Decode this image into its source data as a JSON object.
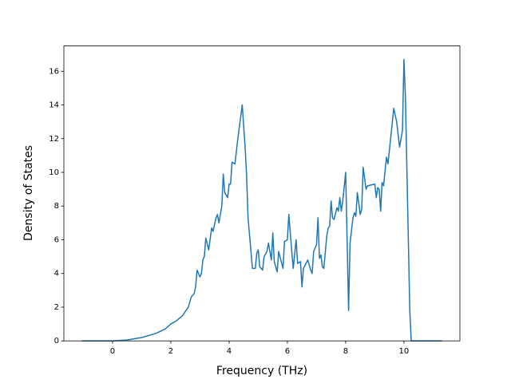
{
  "chart_data": {
    "type": "line",
    "xlabel": "Frequency (THz)",
    "ylabel": "Density of States",
    "xlim": [
      -1.67,
      11.92
    ],
    "ylim": [
      0,
      17.5
    ],
    "xticks": [
      0,
      2,
      4,
      6,
      8,
      10
    ],
    "yticks": [
      0,
      2,
      4,
      6,
      8,
      10,
      12,
      14,
      16
    ],
    "grid": false,
    "series": [
      {
        "color": "#1f77b4",
        "x": [
          -1.05,
          0,
          0.5,
          1.0,
          1.5,
          1.8,
          2.0,
          2.2,
          2.4,
          2.6,
          2.7,
          2.8,
          2.85,
          2.9,
          3.0,
          3.05,
          3.1,
          3.15,
          3.2,
          3.3,
          3.4,
          3.45,
          3.55,
          3.6,
          3.65,
          3.75,
          3.8,
          3.85,
          3.95,
          4.0,
          4.05,
          4.1,
          4.2,
          4.3,
          4.45,
          4.55,
          4.6,
          4.65,
          4.75,
          4.8,
          4.9,
          4.95,
          5.0,
          5.05,
          5.15,
          5.2,
          5.3,
          5.35,
          5.45,
          5.5,
          5.55,
          5.65,
          5.7,
          5.85,
          5.9,
          6.0,
          6.05,
          6.15,
          6.2,
          6.3,
          6.35,
          6.45,
          6.5,
          6.55,
          6.7,
          6.8,
          6.85,
          6.9,
          7.0,
          7.05,
          7.1,
          7.15,
          7.2,
          7.25,
          7.35,
          7.4,
          7.45,
          7.5,
          7.55,
          7.6,
          7.7,
          7.75,
          7.8,
          7.85,
          7.9,
          8.0,
          8.05,
          8.1,
          8.15,
          8.25,
          8.3,
          8.35,
          8.4,
          8.5,
          8.55,
          8.6,
          8.7,
          8.75,
          9.0,
          9.05,
          9.1,
          9.15,
          9.2,
          9.25,
          9.3,
          9.4,
          9.45,
          9.5,
          9.65,
          9.75,
          9.85,
          9.95,
          10.0,
          10.05,
          10.1,
          10.2,
          10.25,
          11.3
        ],
        "values": [
          0,
          0,
          0.05,
          0.2,
          0.45,
          0.7,
          1.0,
          1.2,
          1.5,
          2.0,
          2.6,
          2.8,
          3.2,
          4.2,
          3.8,
          4.0,
          4.8,
          5.0,
          6.1,
          5.4,
          6.7,
          6.5,
          7.3,
          7.5,
          7.0,
          8.0,
          9.9,
          8.8,
          8.5,
          9.3,
          9.3,
          10.6,
          10.5,
          12.0,
          14.0,
          11.5,
          9.8,
          7.3,
          5.3,
          4.3,
          4.3,
          5.2,
          5.4,
          4.4,
          4.2,
          5.0,
          5.3,
          5.8,
          4.8,
          6.4,
          4.7,
          4.1,
          5.3,
          4.3,
          5.9,
          6.0,
          7.5,
          5.3,
          4.3,
          6.0,
          4.6,
          4.7,
          3.2,
          4.3,
          4.8,
          4.2,
          4.0,
          5.3,
          5.7,
          7.3,
          4.9,
          5.1,
          4.4,
          4.3,
          6.2,
          6.7,
          6.8,
          8.3,
          7.3,
          7.2,
          7.9,
          7.7,
          8.5,
          7.7,
          8.3,
          10.0,
          6.0,
          1.8,
          5.8,
          7.3,
          7.6,
          7.4,
          8.8,
          7.5,
          7.8,
          10.3,
          9.0,
          9.2,
          9.3,
          8.5,
          9.1,
          9.0,
          7.7,
          9.4,
          9.2,
          10.9,
          10.5,
          11.3,
          13.8,
          13.0,
          11.5,
          12.5,
          16.7,
          14.5,
          10.3,
          1.8,
          0,
          0
        ]
      }
    ]
  }
}
